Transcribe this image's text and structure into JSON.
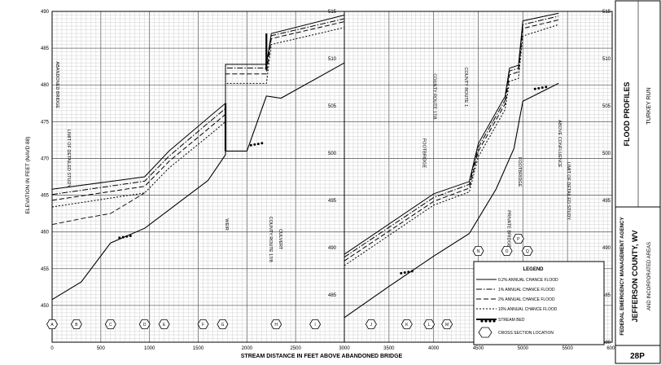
{
  "chart_data": [
    {
      "type": "line",
      "panel": "left",
      "x_range": [
        0,
        3000
      ],
      "y_range": [
        445,
        490
      ],
      "x_ticks": [
        "0",
        "500",
        "1000",
        "1500",
        "2000",
        "2500",
        "3000"
      ],
      "y_ticks": [
        "450",
        "455",
        "460",
        "465",
        "470",
        "475",
        "480",
        "485",
        "490"
      ],
      "ylabel": "ELEVATION IN FEET (NAVD 88)",
      "series": [
        {
          "key": "f02",
          "points": [
            [
              0,
              465.8
            ],
            [
              950,
              467.5
            ],
            [
              1200,
              471
            ],
            [
              1600,
              475.5
            ],
            [
              1780,
              477.5
            ],
            [
              1780,
              482.8
            ],
            [
              2200,
              482.8
            ],
            [
              2250,
              487
            ],
            [
              3000,
              489.5
            ]
          ]
        },
        {
          "key": "f1",
          "points": [
            [
              0,
              465.1
            ],
            [
              950,
              466.9
            ],
            [
              1200,
              470.3
            ],
            [
              1600,
              474.8
            ],
            [
              1780,
              476.8
            ],
            [
              1780,
              482.3
            ],
            [
              2200,
              482.3
            ],
            [
              2250,
              486.7
            ],
            [
              3000,
              489
            ]
          ]
        },
        {
          "key": "f2",
          "points": [
            [
              0,
              464.3
            ],
            [
              950,
              466.2
            ],
            [
              1200,
              469.6
            ],
            [
              1600,
              474
            ],
            [
              1780,
              476
            ],
            [
              1780,
              481.5
            ],
            [
              2200,
              481.5
            ],
            [
              2250,
              486.3
            ],
            [
              3000,
              488.6
            ]
          ]
        },
        {
          "key": "f10",
          "points": [
            [
              0,
              463.4
            ],
            [
              950,
              465.3
            ],
            [
              1200,
              468.7
            ],
            [
              1600,
              473
            ],
            [
              1780,
              475
            ],
            [
              1780,
              480.2
            ],
            [
              2200,
              480.2
            ],
            [
              2250,
              485.5
            ],
            [
              3000,
              487.8
            ]
          ]
        },
        {
          "key": "f_extra",
          "points": [
            [
              0,
              461
            ],
            [
              300,
              461.8
            ],
            [
              600,
              462.5
            ],
            [
              950,
              465.3
            ]
          ]
        },
        {
          "key": "bed",
          "points": [
            [
              0,
              450.8
            ],
            [
              300,
              453.2
            ],
            [
              600,
              458.5
            ],
            [
              950,
              460.5
            ],
            [
              1300,
              464
            ],
            [
              1600,
              467
            ],
            [
              1780,
              470.5
            ],
            [
              1780,
              471
            ],
            [
              2000,
              471
            ],
            [
              2200,
              478.5
            ],
            [
              2350,
              478.2
            ],
            [
              3000,
              483
            ]
          ]
        }
      ],
      "stream_bed_markers": [
        [
          750,
          459.2
        ],
        [
          2100,
          471.8
        ]
      ],
      "cross_section_marks": [
        [
          0,
          "A"
        ],
        [
          250,
          "B"
        ],
        [
          600,
          "C"
        ],
        [
          950,
          "D"
        ],
        [
          1150,
          "E"
        ],
        [
          1550,
          "F"
        ],
        [
          1750,
          "G"
        ],
        [
          2300,
          "H"
        ],
        [
          2700,
          "I"
        ]
      ],
      "annotations": [
        {
          "text": "ABANDONED BRIDGE",
          "x": 40,
          "y": 480
        },
        {
          "text": "LIMIT OF DETAILED STUDY",
          "x": 160,
          "y": 470
        },
        {
          "text": "WEIR",
          "x": 1780,
          "y": 461
        },
        {
          "text": "COUNTY ROUTE 17/8",
          "x": 2230,
          "y": 459
        },
        {
          "text": "CULVERT",
          "x": 2330,
          "y": 459
        }
      ]
    },
    {
      "type": "line",
      "panel": "right",
      "x_range": [
        3000,
        6000
      ],
      "y_range": [
        480,
        515
      ],
      "x_ticks": [
        "3000",
        "3500",
        "4000",
        "4500",
        "5000",
        "5500",
        "6000"
      ],
      "y_ticks_left": [
        "485",
        "490",
        "495",
        "500",
        "505",
        "510",
        "515"
      ],
      "y_ticks_right": [
        "480",
        "485",
        "490",
        "495",
        "500",
        "505",
        "510",
        "515"
      ],
      "series": [
        {
          "key": "f02",
          "points": [
            [
              3000,
              489.3
            ],
            [
              4000,
              495.7
            ],
            [
              4400,
              497
            ],
            [
              4500,
              501
            ],
            [
              4800,
              506
            ],
            [
              4850,
              509
            ],
            [
              4950,
              509.3
            ],
            [
              5000,
              514
            ],
            [
              5400,
              514.8
            ]
          ]
        },
        {
          "key": "f1",
          "points": [
            [
              3000,
              489
            ],
            [
              4000,
              495.3
            ],
            [
              4400,
              496.7
            ],
            [
              4500,
              500.6
            ],
            [
              4800,
              505.6
            ],
            [
              4850,
              508.7
            ],
            [
              4950,
              509
            ],
            [
              5000,
              513.6
            ],
            [
              5400,
              514.5
            ]
          ]
        },
        {
          "key": "f2",
          "points": [
            [
              3000,
              488.6
            ],
            [
              4000,
              494.9
            ],
            [
              4400,
              496.3
            ],
            [
              4500,
              500.2
            ],
            [
              4800,
              505.2
            ],
            [
              4850,
              508.3
            ],
            [
              4950,
              508.6
            ],
            [
              5000,
              513.2
            ],
            [
              5400,
              514.1
            ]
          ]
        },
        {
          "key": "f10",
          "points": [
            [
              3000,
              488.1
            ],
            [
              4000,
              494.5
            ],
            [
              4400,
              495.9
            ],
            [
              4500,
              499.6
            ],
            [
              4800,
              504.6
            ],
            [
              4850,
              507.6
            ],
            [
              4950,
              507.9
            ],
            [
              5000,
              512.4
            ],
            [
              5400,
              513.6
            ]
          ]
        },
        {
          "key": "bed",
          "points": [
            [
              3000,
              482.6
            ],
            [
              3500,
              485.9
            ],
            [
              4000,
              489.1
            ],
            [
              4400,
              491.5
            ],
            [
              4700,
              496.2
            ],
            [
              4900,
              500.5
            ],
            [
              5000,
              505.5
            ],
            [
              5400,
              507.4
            ]
          ]
        }
      ],
      "stream_bed_markers": [
        [
          3700,
          487.3
        ],
        [
          5200,
          506.8
        ]
      ],
      "cross_section_marks": [
        [
          3300,
          "J"
        ],
        [
          3700,
          "K"
        ],
        [
          3950,
          "L"
        ],
        [
          4150,
          "M"
        ]
      ],
      "cross_section_marks_upper": [
        [
          4500,
          "N"
        ],
        [
          4820,
          "O"
        ],
        [
          4950,
          "P"
        ],
        [
          5050,
          "Q"
        ]
      ],
      "annotations": [
        {
          "text": "FOOTBRIDGE",
          "x": 3880,
          "y": 500
        },
        {
          "text": "COUNTY ROUTE 17/8",
          "x": 4000,
          "y": 506
        },
        {
          "text": "COUNTY ROUTE 1",
          "x": 4350,
          "y": 507
        },
        {
          "text": "PRIVATE BRIDGE",
          "x": 4830,
          "y": 492
        },
        {
          "text": "FOOTBRIDGE",
          "x": 4950,
          "y": 498
        },
        {
          "text": "ABOVE CONFLUENCE",
          "x": 5400,
          "y": 501
        },
        {
          "text": "LIMIT OF DETAILED STUDY",
          "x": 5500,
          "y": 496
        }
      ]
    }
  ],
  "xlabel": "STREAM DISTANCE IN FEET ABOVE ABANDONED BRIDGE",
  "legend": {
    "title": "LEGEND",
    "items": [
      {
        "key": "f02",
        "label": "0.2% ANNUAL CHANCE FLOOD"
      },
      {
        "key": "f1",
        "label": "1% ANNUAL CHANCE FLOOD"
      },
      {
        "key": "f2",
        "label": "2% ANNUAL CHANCE FLOOD"
      },
      {
        "key": "f10",
        "label": "10% ANNUAL CHANCE FLOOD"
      },
      {
        "key": "bed",
        "label": "STREAM BED"
      },
      {
        "key": "xs",
        "label": "CROSS SECTION LOCATION"
      }
    ]
  },
  "title_block": {
    "title": "FLOOD PROFILES",
    "stream": "TURKEY RUN",
    "agency": "FEDERAL EMERGENCY MANAGEMENT AGENCY",
    "county": "JEFFERSON COUNTY, WV",
    "areas": "AND INCORPORATED AREAS",
    "sheet": "28P"
  }
}
